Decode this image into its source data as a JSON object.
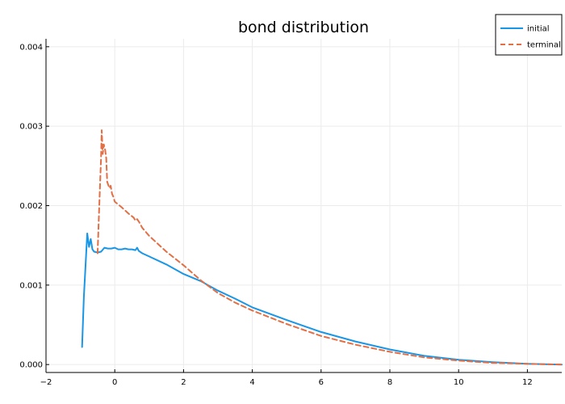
{
  "chart_data": {
    "type": "line",
    "title": "bond distribution",
    "xlabel": "",
    "ylabel": "",
    "xlim": [
      -2,
      13
    ],
    "ylim": [
      -0.0001,
      0.0041
    ],
    "xticks": [
      -2,
      0,
      2,
      4,
      6,
      8,
      10,
      12
    ],
    "xtick_labels": [
      "−2",
      "0",
      "2",
      "4",
      "6",
      "8",
      "10",
      "12"
    ],
    "yticks": [
      0.0,
      0.001,
      0.002,
      0.003,
      0.004
    ],
    "ytick_labels": [
      "0.000",
      "0.001",
      "0.002",
      "0.003",
      "0.004"
    ],
    "grid": true,
    "legend_position": "top-right",
    "series": [
      {
        "name": "initial",
        "color": "#1a96e6",
        "dash": "solid",
        "x": [
          -0.95,
          -0.9,
          -0.85,
          -0.8,
          -0.75,
          -0.7,
          -0.65,
          -0.6,
          -0.5,
          -0.4,
          -0.3,
          -0.2,
          -0.1,
          0.0,
          0.1,
          0.2,
          0.3,
          0.4,
          0.5,
          0.6,
          0.65,
          0.7,
          0.8,
          1.0,
          1.5,
          2.0,
          2.5,
          3.0,
          3.5,
          4.0,
          5.0,
          6.0,
          7.0,
          8.0,
          9.0,
          10.0,
          11.0,
          12.0,
          13.0
        ],
        "y": [
          0.00022,
          0.00085,
          0.00125,
          0.00165,
          0.00148,
          0.00158,
          0.00145,
          0.00142,
          0.00141,
          0.00142,
          0.00147,
          0.00146,
          0.00146,
          0.00147,
          0.00145,
          0.00145,
          0.00146,
          0.00145,
          0.00145,
          0.00144,
          0.00147,
          0.00143,
          0.0014,
          0.00136,
          0.00126,
          0.00114,
          0.00105,
          0.00093,
          0.00083,
          0.00072,
          0.00056,
          0.00041,
          0.00029,
          0.00019,
          0.00011,
          6e-05,
          3e-05,
          1e-05,
          0.0
        ]
      },
      {
        "name": "terminal",
        "color": "#e26f46",
        "dash": "dashed",
        "x": [
          -0.5,
          -0.45,
          -0.4,
          -0.38,
          -0.35,
          -0.32,
          -0.28,
          -0.25,
          -0.22,
          -0.18,
          -0.15,
          -0.12,
          -0.08,
          -0.05,
          0.0,
          0.2,
          0.4,
          0.55,
          0.6,
          0.65,
          0.7,
          0.8,
          1.0,
          1.5,
          2.0,
          2.5,
          3.0,
          3.5,
          4.0,
          5.0,
          6.0,
          7.0,
          8.0,
          9.0,
          10.0,
          11.0,
          12.0,
          13.0
        ],
        "y": [
          0.0014,
          0.002,
          0.0026,
          0.00295,
          0.00265,
          0.00277,
          0.0027,
          0.0026,
          0.0023,
          0.00225,
          0.00222,
          0.00225,
          0.00215,
          0.00212,
          0.00205,
          0.00198,
          0.0019,
          0.00185,
          0.00181,
          0.00183,
          0.0018,
          0.00172,
          0.00162,
          0.00142,
          0.00125,
          0.00106,
          0.0009,
          0.00078,
          0.00068,
          0.00051,
          0.00036,
          0.00025,
          0.00016,
          9e-05,
          5e-05,
          2e-05,
          1e-05,
          0.0
        ]
      }
    ]
  }
}
